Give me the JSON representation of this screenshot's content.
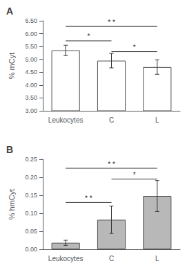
{
  "chart_data": [
    {
      "type": "bar",
      "title": "A",
      "categories": [
        "Leukocytes",
        "C",
        "L"
      ],
      "values": [
        5.35,
        4.95,
        4.7
      ],
      "errors": [
        0.2,
        0.28,
        0.28
      ],
      "color": "#ffffff",
      "ylabel": "% mCyt",
      "ylim": [
        3.0,
        6.5
      ],
      "yticks": [
        {
          "value": 3.0,
          "label": "3.00"
        },
        {
          "value": 3.5,
          "label": "3.50"
        },
        {
          "value": 4.0,
          "label": "4.00"
        },
        {
          "value": 4.5,
          "label": "4.50"
        },
        {
          "value": 5.0,
          "label": "5.00"
        },
        {
          "value": 5.5,
          "label": "5.50"
        },
        {
          "value": 6.0,
          "label": "6.00"
        },
        {
          "value": 6.5,
          "label": "6.50"
        }
      ],
      "grid": false,
      "significance_lines": [
        {
          "from": "Leukocytes",
          "to": "C",
          "y": 5.72,
          "label": "*"
        },
        {
          "from": "Leukocytes",
          "to": "L",
          "y": 6.28,
          "label": "* *"
        },
        {
          "from": "C",
          "to": "L",
          "y": 5.3,
          "label": "*"
        }
      ]
    },
    {
      "type": "bar",
      "title": "B",
      "categories": [
        "Leukocytes",
        "C",
        "L"
      ],
      "values": [
        0.018,
        0.082,
        0.148
      ],
      "errors": [
        0.007,
        0.038,
        0.043
      ],
      "color": "#b8b8b8",
      "ylabel": "% hmCyt",
      "ylim": [
        0.0,
        0.25
      ],
      "yticks": [
        {
          "value": 0.0,
          "label": "0.00"
        },
        {
          "value": 0.05,
          "label": "0.05"
        },
        {
          "value": 0.1,
          "label": "0.10"
        },
        {
          "value": 0.15,
          "label": "0.15"
        },
        {
          "value": 0.2,
          "label": "0.20"
        },
        {
          "value": 0.25,
          "label": "0.25"
        }
      ],
      "grid": false,
      "significance_lines": [
        {
          "from": "Leukocytes",
          "to": "C",
          "y": 0.13,
          "label": "* *"
        },
        {
          "from": "Leukocytes",
          "to": "L",
          "y": 0.225,
          "label": "* *"
        },
        {
          "from": "C",
          "to": "L",
          "y": 0.195,
          "label": "*"
        }
      ]
    }
  ]
}
